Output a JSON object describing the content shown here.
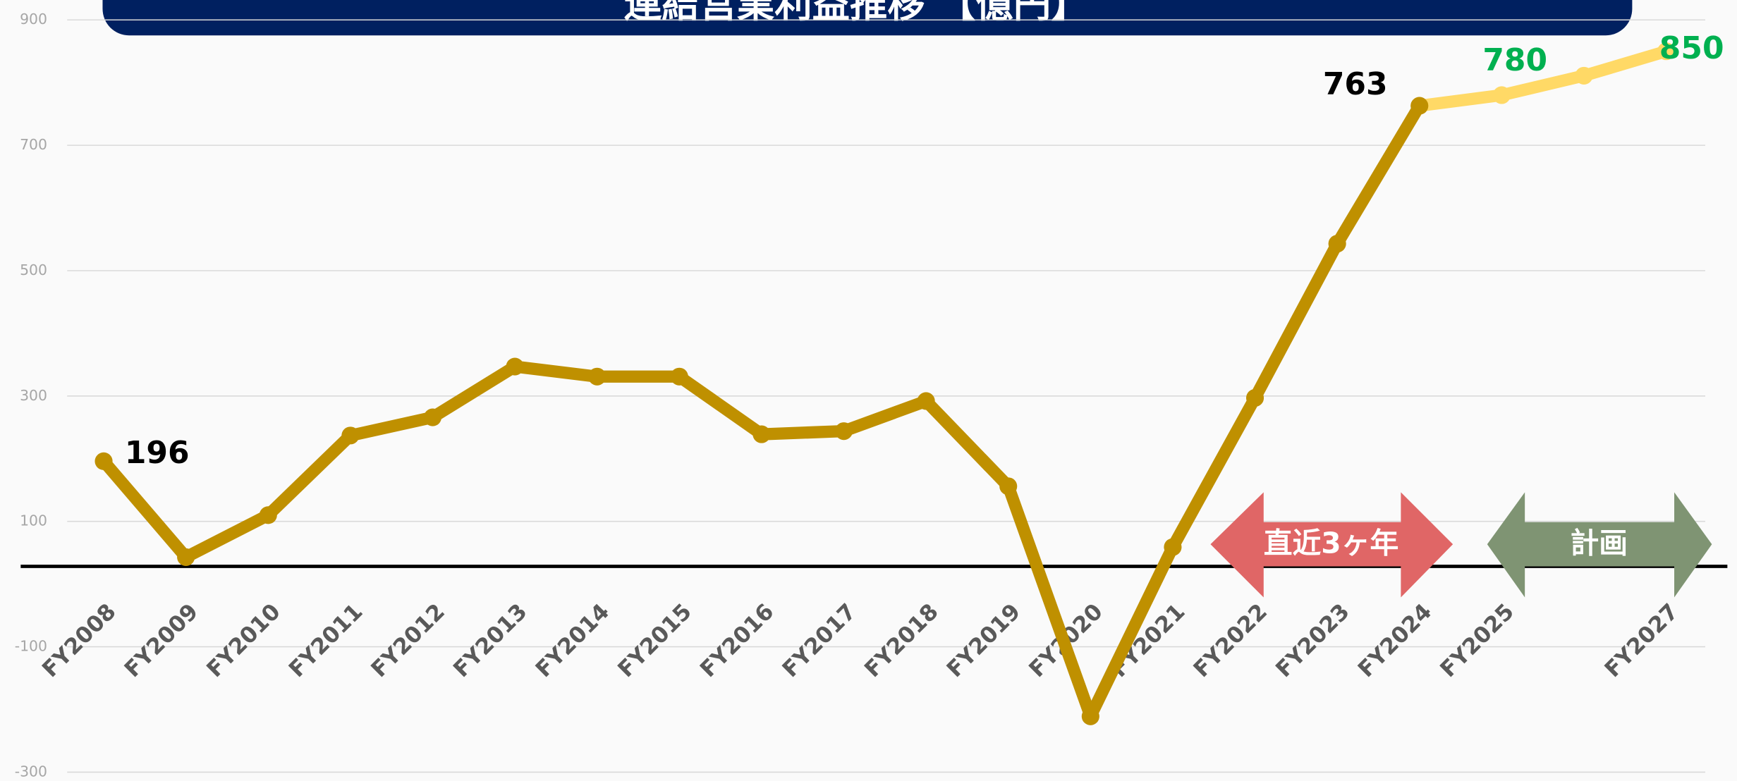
{
  "chart_data": {
    "type": "line",
    "title": "連結営業利益推移 【億円】",
    "categories": [
      "FY2008",
      "FY2009",
      "FY2010",
      "FY2011",
      "FY2012",
      "FY2013",
      "FY2014",
      "FY2015",
      "FY2016",
      "FY2017",
      "FY2018",
      "FY2019",
      "FY2020",
      "FY2021",
      "FY2022",
      "FY2023",
      "FY2024",
      "FY2025",
      null,
      "FY2027"
    ],
    "series": [
      {
        "color": "#bf9000",
        "values": [
          196,
          43,
          110,
          237,
          266,
          347,
          331,
          331,
          239,
          244,
          292,
          156,
          -211,
          59,
          297,
          543,
          763,
          null,
          null,
          null
        ]
      },
      {
        "color": "#ffd966",
        "values": [
          null,
          null,
          null,
          null,
          null,
          null,
          null,
          null,
          null,
          null,
          null,
          null,
          null,
          null,
          null,
          null,
          763,
          780,
          811,
          850
        ]
      }
    ],
    "ylim": [
      -300,
      900
    ],
    "yticks": [
      -300,
      -100,
      100,
      300,
      500,
      700,
      900
    ],
    "grid": true,
    "annotations": [
      "直近3ヶ年",
      "計画"
    ]
  }
}
